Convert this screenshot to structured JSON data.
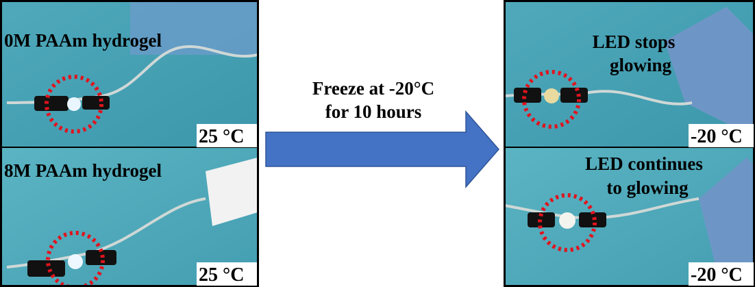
{
  "left_panels": [
    {
      "label": "0M PAAm hydrogel",
      "temperature": "25 °C"
    },
    {
      "label": "8M PAAm hydrogel",
      "temperature": "25 °C"
    }
  ],
  "arrow": {
    "lines": [
      "Freeze at -20°C",
      "for 10 hours"
    ]
  },
  "right_panels": [
    {
      "label_lines": [
        "LED stops",
        "glowing"
      ],
      "temperature": "-20 °C"
    },
    {
      "label_lines": [
        "LED continues",
        "to glowing"
      ],
      "temperature": "-20 °C"
    }
  ]
}
